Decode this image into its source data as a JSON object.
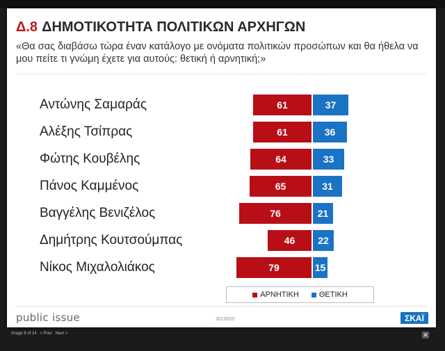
{
  "slide": {
    "number": "Δ.8",
    "title": "ΔΗΜΟΤΙΚΟΤΗΤΑ ΠΟΛΙΤΙΚΩΝ ΑΡΧΗΓΩΝ",
    "subtitle": "«Θα σας διαβάσω τώρα έναν κατάλογο με ονόματα πολιτικών προσώπων και θα ήθελα να μου πείτε τι γνώμη έχετε για αυτούς: θετική ή αρνητική;»",
    "brand": "public issue",
    "code": "2013020",
    "logo": "ΣΚΑΪ"
  },
  "chart_data": {
    "type": "bar",
    "orientation": "horizontal-diverging",
    "categories": [
      "Αντώνης Σαμαράς",
      "Αλέξης Τσίπρας",
      "Φώτης Κουβέλης",
      "Πάνος Καμμένος",
      "Βαγγέλης Βενιζέλος",
      "Δημήτρης Κουτσούμπας",
      "Νίκος Μιχαλολιάκος"
    ],
    "series": [
      {
        "name": "ΑΡΝΗΤΙΚΗ",
        "color": "#b80f17",
        "values": [
          61,
          61,
          64,
          65,
          76,
          46,
          79
        ]
      },
      {
        "name": "ΘΕΤΙΚΗ",
        "color": "#1a73c4",
        "values": [
          37,
          36,
          33,
          31,
          21,
          22,
          15
        ]
      }
    ],
    "legend": "bottom",
    "xlabel": "",
    "ylabel": ""
  },
  "viewer": {
    "image_counter": "Image 8 of 24",
    "prev": "< Prev",
    "next": "Next >",
    "close": "✕"
  }
}
